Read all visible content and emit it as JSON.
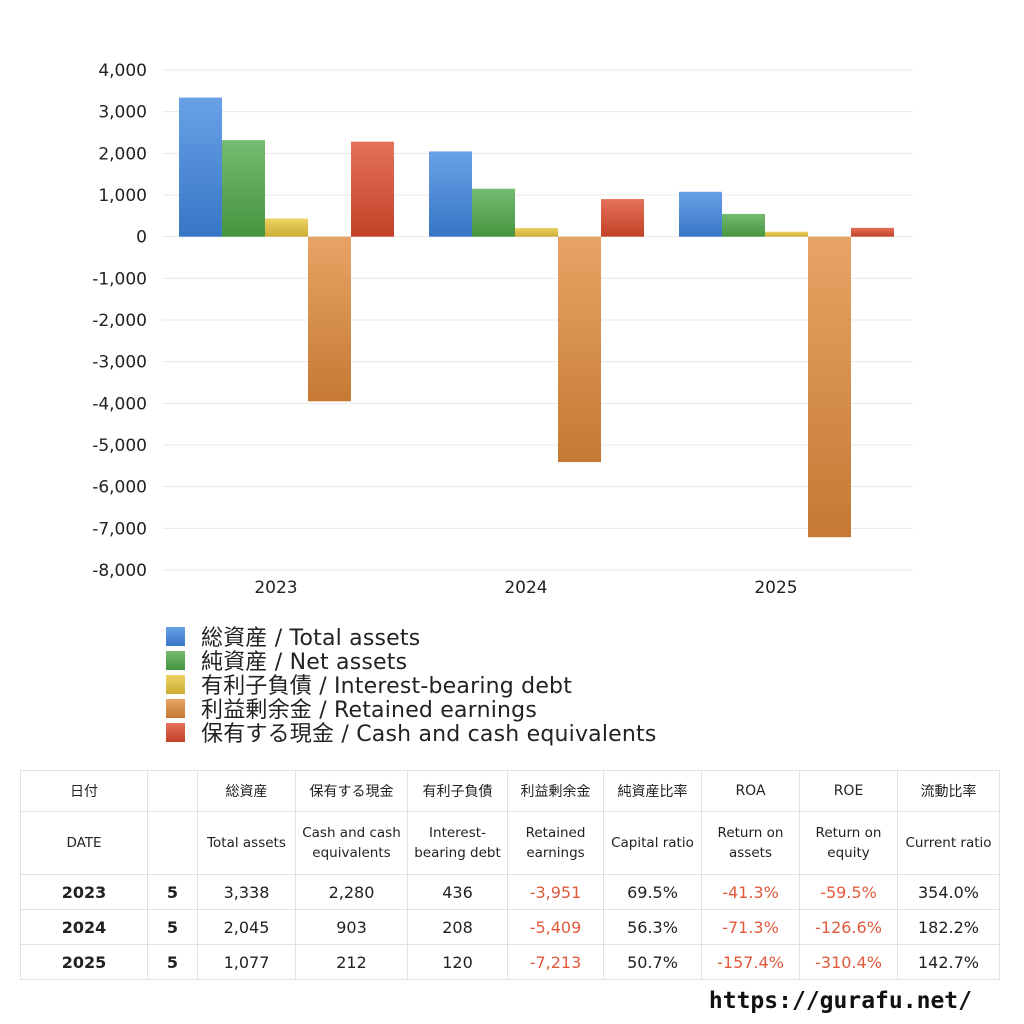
{
  "chart_data": {
    "type": "bar",
    "categories": [
      "2023",
      "2024",
      "2025"
    ],
    "ylim": [
      -8000,
      4000
    ],
    "yticks": [
      4000,
      3000,
      2000,
      1000,
      0,
      -1000,
      -2000,
      -3000,
      -4000,
      -5000,
      -6000,
      -7000,
      -8000
    ],
    "ytick_labels": [
      "4,000",
      "3,000",
      "2,000",
      "1,000",
      "0",
      "-1,000",
      "-2,000",
      "-3,000",
      "-4,000",
      "-5,000",
      "-6,000",
      "-7,000",
      "-8,000"
    ],
    "grid": true,
    "legend_placement": "bottom",
    "series": [
      {
        "name": "総資産 / Total assets",
        "color": "#3f86e0",
        "values": [
          3338,
          2045,
          1077
        ]
      },
      {
        "name": "純資産 / Net assets",
        "color": "#4ea848",
        "values": [
          2316,
          1151,
          546
        ]
      },
      {
        "name": "有利子負債 / Interest-bearing debt",
        "color": "#e8c53a",
        "values": [
          436,
          208,
          120
        ]
      },
      {
        "name": "利益剰余金 / Retained earnings",
        "color": "#e08a3a",
        "values": [
          -3951,
          -5409,
          -7213
        ]
      },
      {
        "name": "保有する現金 /  Cash and cash equivalents",
        "color": "#dc4a2c",
        "values": [
          2280,
          903,
          212
        ]
      }
    ]
  },
  "table": {
    "header_jp": [
      "日付",
      "",
      "総資産",
      "保有する現金",
      "有利子負債",
      "利益剰余金",
      "純資産比率",
      "ROA",
      "ROE",
      "流動比率"
    ],
    "header_en": [
      "DATE",
      "",
      "Total assets",
      "Cash and cash equivalents",
      "Interest-bearing debt",
      "Retained earnings",
      "Capital ratio",
      "Return on assets",
      "Return on equity",
      "Current ratio"
    ],
    "rows": [
      [
        "2023",
        "5",
        "3,338",
        "2,280",
        "436",
        "-3,951",
        "69.5%",
        "-41.3%",
        "-59.5%",
        "354.0%"
      ],
      [
        "2024",
        "5",
        "2,045",
        "903",
        "208",
        "-5,409",
        "56.3%",
        "-71.3%",
        "-126.6%",
        "182.2%"
      ],
      [
        "2025",
        "5",
        "1,077",
        "212",
        "120",
        "-7,213",
        "50.7%",
        "-157.4%",
        "-310.4%",
        "142.7%"
      ]
    ]
  },
  "source": "https://gurafu.net/"
}
